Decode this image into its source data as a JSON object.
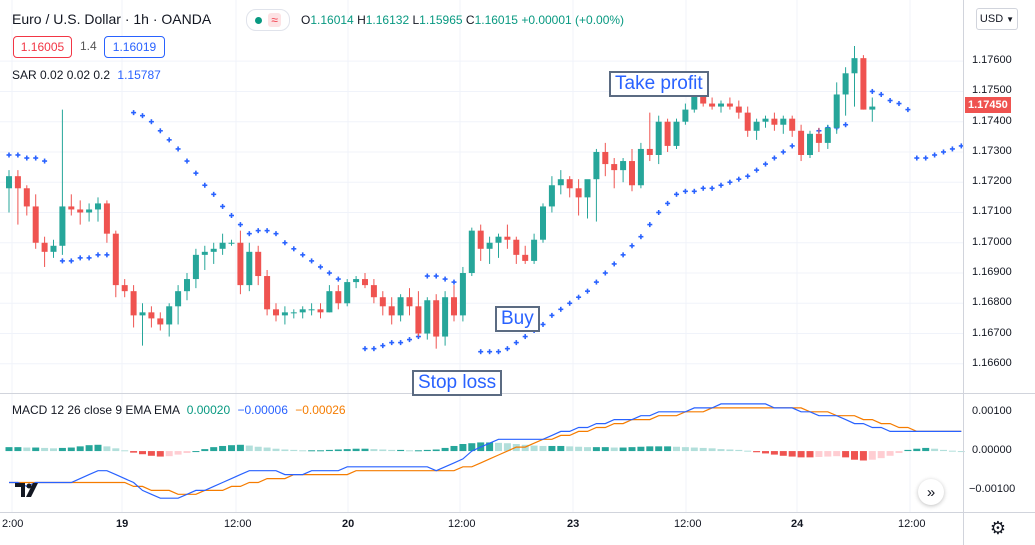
{
  "header": {
    "symbol": "Euro / U.S. Dollar · 1h · OANDA",
    "o_label": "O",
    "o_value": "1.16014",
    "h_label": "H",
    "h_value": "1.16132",
    "l_label": "L",
    "l_value": "1.15965",
    "c_label": "C",
    "c_value": "1.16015",
    "change": "+0.00001 (+0.00%)",
    "sell_price": "1.16005",
    "spread": "1.4",
    "buy_price": "1.16019",
    "currency": "USD",
    "sar_label": "SAR 0.02 0.02 0.2",
    "sar_value": "1.15787",
    "macd_label": "MACD 12 26 close 9 EMA EMA",
    "macd_hist": "0.00020",
    "macd_line": "−0.00006",
    "macd_signal": "−0.00026"
  },
  "annotations": {
    "take_profit": "Take profit",
    "buy": "Buy",
    "stop_loss": "Stop loss"
  },
  "price_axis": {
    "ticks": [
      "1.17600",
      "1.17500",
      "1.17400",
      "1.17300",
      "1.17200",
      "1.17100",
      "1.17000",
      "1.16900",
      "1.16800",
      "1.16700",
      "1.16600"
    ],
    "current": "1.17450"
  },
  "macd_axis": {
    "ticks": [
      "0.00100",
      "0.00000",
      "−0.00100"
    ]
  },
  "time_axis": {
    "ticks": [
      "2:00",
      "19",
      "12:00",
      "20",
      "12:00",
      "23",
      "12:00",
      "24",
      "12:00"
    ]
  },
  "colors": {
    "up": "#26a69a",
    "down": "#ef5350",
    "sar": "#2962ff",
    "macd": "#2962ff",
    "signal": "#f57c00",
    "hist_up": "#26a69a",
    "hist_up_light": "#b2dfdb",
    "hist_down": "#ef5350",
    "hist_down_light": "#ffcdd2"
  },
  "icons": {
    "tv_logo": "tradingview-logo-icon",
    "settings": "gear-icon",
    "scroll": "double-chevron-right-icon"
  },
  "chart_data": {
    "type": "candlestick",
    "title": "Euro / U.S. Dollar · 1h · OANDA",
    "ylim": [
      1.1652,
      1.1767
    ],
    "candles_ohlc": [
      [
        1.1718,
        1.1724,
        1.171,
        1.1722
      ],
      [
        1.1722,
        1.1724,
        1.1706,
        1.1718
      ],
      [
        1.1718,
        1.1719,
        1.1709,
        1.1712
      ],
      [
        1.1712,
        1.1716,
        1.1698,
        1.17
      ],
      [
        1.17,
        1.1702,
        1.1692,
        1.1697
      ],
      [
        1.1697,
        1.1701,
        1.1695,
        1.1699
      ],
      [
        1.1699,
        1.1744,
        1.1696,
        1.1712
      ],
      [
        1.1712,
        1.1716,
        1.1709,
        1.1711
      ],
      [
        1.1711,
        1.1714,
        1.1706,
        1.171
      ],
      [
        1.171,
        1.1713,
        1.1707,
        1.1711
      ],
      [
        1.1711,
        1.1715,
        1.1707,
        1.1713
      ],
      [
        1.1713,
        1.1714,
        1.17,
        1.1703
      ],
      [
        1.1703,
        1.1704,
        1.1682,
        1.1686
      ],
      [
        1.1686,
        1.1688,
        1.1682,
        1.1684
      ],
      [
        1.1684,
        1.1686,
        1.1672,
        1.1676
      ],
      [
        1.1676,
        1.168,
        1.1666,
        1.1677
      ],
      [
        1.1677,
        1.1679,
        1.1672,
        1.1675
      ],
      [
        1.1675,
        1.1677,
        1.1671,
        1.1673
      ],
      [
        1.1673,
        1.168,
        1.1669,
        1.1679
      ],
      [
        1.1679,
        1.1686,
        1.1673,
        1.1684
      ],
      [
        1.1684,
        1.169,
        1.1681,
        1.1688
      ],
      [
        1.1688,
        1.1698,
        1.1685,
        1.1696
      ],
      [
        1.1696,
        1.1699,
        1.1691,
        1.1697
      ],
      [
        1.1697,
        1.17,
        1.1693,
        1.1698
      ],
      [
        1.1698,
        1.1703,
        1.1696,
        1.17
      ],
      [
        1.17,
        1.1701,
        1.1699,
        1.17
      ],
      [
        1.17,
        1.1704,
        1.1683,
        1.1686
      ],
      [
        1.1686,
        1.17,
        1.1684,
        1.1697
      ],
      [
        1.1697,
        1.1699,
        1.1686,
        1.1689
      ],
      [
        1.1689,
        1.1691,
        1.1676,
        1.1678
      ],
      [
        1.1678,
        1.168,
        1.1674,
        1.1676
      ],
      [
        1.1676,
        1.1679,
        1.1673,
        1.1677
      ],
      [
        1.1677,
        1.1678,
        1.1675,
        1.1677
      ],
      [
        1.1677,
        1.1679,
        1.1675,
        1.1678
      ],
      [
        1.1678,
        1.168,
        1.1676,
        1.1678
      ],
      [
        1.1678,
        1.168,
        1.1675,
        1.1677
      ],
      [
        1.1677,
        1.1686,
        1.1677,
        1.1684
      ],
      [
        1.1684,
        1.1686,
        1.1678,
        1.168
      ],
      [
        1.168,
        1.1688,
        1.1679,
        1.1687
      ],
      [
        1.1687,
        1.1689,
        1.1685,
        1.1688
      ],
      [
        1.1688,
        1.169,
        1.1685,
        1.1686
      ],
      [
        1.1686,
        1.1688,
        1.168,
        1.1682
      ],
      [
        1.1682,
        1.1684,
        1.1676,
        1.1679
      ],
      [
        1.1679,
        1.1682,
        1.1673,
        1.1676
      ],
      [
        1.1676,
        1.1683,
        1.1674,
        1.1682
      ],
      [
        1.1682,
        1.1685,
        1.1676,
        1.1679
      ],
      [
        1.1679,
        1.1684,
        1.1669,
        1.167
      ],
      [
        1.167,
        1.1682,
        1.1668,
        1.1681
      ],
      [
        1.1681,
        1.1683,
        1.1665,
        1.1669
      ],
      [
        1.1669,
        1.1684,
        1.1666,
        1.1682
      ],
      [
        1.1682,
        1.1686,
        1.1674,
        1.1676
      ],
      [
        1.1676,
        1.1692,
        1.1674,
        1.169
      ],
      [
        1.169,
        1.1705,
        1.1689,
        1.1704
      ],
      [
        1.1704,
        1.1706,
        1.1694,
        1.1698
      ],
      [
        1.1698,
        1.1702,
        1.1693,
        1.17
      ],
      [
        1.17,
        1.1703,
        1.1695,
        1.1702
      ],
      [
        1.1702,
        1.1706,
        1.1698,
        1.1701
      ],
      [
        1.1701,
        1.1702,
        1.1693,
        1.1696
      ],
      [
        1.1696,
        1.1699,
        1.1693,
        1.1694
      ],
      [
        1.1694,
        1.1703,
        1.1693,
        1.1701
      ],
      [
        1.1701,
        1.1713,
        1.17,
        1.1712
      ],
      [
        1.1712,
        1.1722,
        1.171,
        1.1719
      ],
      [
        1.1719,
        1.1724,
        1.1716,
        1.1721
      ],
      [
        1.1721,
        1.1722,
        1.1715,
        1.1718
      ],
      [
        1.1718,
        1.1721,
        1.1709,
        1.1715
      ],
      [
        1.1715,
        1.1717,
        1.1708,
        1.1721
      ],
      [
        1.1721,
        1.1731,
        1.1707,
        1.173
      ],
      [
        1.173,
        1.1733,
        1.1722,
        1.1726
      ],
      [
        1.1726,
        1.1728,
        1.1718,
        1.1724
      ],
      [
        1.1724,
        1.1728,
        1.172,
        1.1727
      ],
      [
        1.1727,
        1.1731,
        1.1717,
        1.1719
      ],
      [
        1.1719,
        1.1733,
        1.1718,
        1.1731
      ],
      [
        1.1731,
        1.1743,
        1.1727,
        1.1729
      ],
      [
        1.1729,
        1.1742,
        1.1726,
        1.174
      ],
      [
        1.174,
        1.1741,
        1.173,
        1.1732
      ],
      [
        1.1732,
        1.1741,
        1.1731,
        1.174
      ],
      [
        1.174,
        1.1746,
        1.1739,
        1.1744
      ],
      [
        1.1744,
        1.1749,
        1.1743,
        1.1749
      ],
      [
        1.1749,
        1.175,
        1.1745,
        1.1746
      ],
      [
        1.1746,
        1.1748,
        1.1744,
        1.1745
      ],
      [
        1.1745,
        1.1747,
        1.1743,
        1.1746
      ],
      [
        1.1746,
        1.1748,
        1.1744,
        1.1745
      ],
      [
        1.1745,
        1.1747,
        1.1741,
        1.1743
      ],
      [
        1.1743,
        1.1745,
        1.1735,
        1.1737
      ],
      [
        1.1737,
        1.1741,
        1.1734,
        1.174
      ],
      [
        1.174,
        1.1742,
        1.1738,
        1.1741
      ],
      [
        1.1741,
        1.1743,
        1.1737,
        1.1739
      ],
      [
        1.1739,
        1.1742,
        1.1736,
        1.1741
      ],
      [
        1.1741,
        1.1742,
        1.1735,
        1.1737
      ],
      [
        1.1737,
        1.1739,
        1.1727,
        1.1729
      ],
      [
        1.1729,
        1.1737,
        1.1728,
        1.1736
      ],
      [
        1.1736,
        1.1738,
        1.173,
        1.1733
      ],
      [
        1.1733,
        1.1739,
        1.1731,
        1.1738
      ],
      [
        1.1738,
        1.1753,
        1.1736,
        1.1749
      ],
      [
        1.1749,
        1.1758,
        1.1742,
        1.1756
      ],
      [
        1.1756,
        1.1765,
        1.1745,
        1.1761
      ],
      [
        1.1761,
        1.1762,
        1.1744,
        1.1744
      ],
      [
        1.1744,
        1.1748,
        1.174,
        1.1745
      ]
    ],
    "sar": [
      [
        0,
        1.1729
      ],
      [
        1,
        1.1729
      ],
      [
        2,
        1.1728
      ],
      [
        3,
        1.1728
      ],
      [
        4,
        1.1727
      ],
      [
        6,
        1.1694
      ],
      [
        7,
        1.1694
      ],
      [
        8,
        1.1695
      ],
      [
        9,
        1.1695
      ],
      [
        10,
        1.1696
      ],
      [
        11,
        1.1696
      ],
      [
        12,
        1.1697
      ],
      [
        14,
        1.1743
      ],
      [
        15,
        1.1742
      ],
      [
        16,
        1.174
      ],
      [
        17,
        1.1737
      ],
      [
        18,
        1.1734
      ],
      [
        19,
        1.1731
      ],
      [
        20,
        1.1727
      ],
      [
        21,
        1.1723
      ],
      [
        22,
        1.1719
      ],
      [
        23,
        1.1716
      ],
      [
        24,
        1.1712
      ],
      [
        25,
        1.1709
      ],
      [
        26,
        1.1706
      ],
      [
        27,
        1.1703
      ],
      [
        28,
        1.1704
      ],
      [
        29,
        1.1704
      ],
      [
        30,
        1.1703
      ],
      [
        31,
        1.17
      ],
      [
        32,
        1.1698
      ],
      [
        33,
        1.1696
      ],
      [
        34,
        1.1694
      ],
      [
        35,
        1.1692
      ],
      [
        36,
        1.169
      ],
      [
        37,
        1.1688
      ],
      [
        40,
        1.1665
      ],
      [
        41,
        1.1665
      ],
      [
        42,
        1.1666
      ],
      [
        43,
        1.1667
      ],
      [
        44,
        1.1667
      ],
      [
        45,
        1.1668
      ],
      [
        46,
        1.1669
      ],
      [
        47,
        1.1689
      ],
      [
        48,
        1.1689
      ],
      [
        49,
        1.1688
      ],
      [
        50,
        1.1687
      ],
      [
        51,
        1.1685
      ],
      [
        53,
        1.1664
      ],
      [
        54,
        1.1664
      ],
      [
        55,
        1.1664
      ],
      [
        56,
        1.1665
      ],
      [
        57,
        1.1667
      ],
      [
        58,
        1.1669
      ],
      [
        59,
        1.1671
      ],
      [
        60,
        1.1673
      ],
      [
        61,
        1.1676
      ],
      [
        62,
        1.1678
      ],
      [
        63,
        1.168
      ],
      [
        64,
        1.1682
      ],
      [
        65,
        1.1684
      ],
      [
        66,
        1.1687
      ],
      [
        67,
        1.169
      ],
      [
        68,
        1.1693
      ],
      [
        69,
        1.1696
      ],
      [
        70,
        1.1699
      ],
      [
        71,
        1.1702
      ],
      [
        72,
        1.1706
      ],
      [
        73,
        1.171
      ],
      [
        74,
        1.1713
      ],
      [
        75,
        1.1716
      ],
      [
        76,
        1.1717
      ],
      [
        77,
        1.1717
      ],
      [
        78,
        1.1718
      ],
      [
        79,
        1.1718
      ],
      [
        80,
        1.1719
      ],
      [
        81,
        1.172
      ],
      [
        82,
        1.1721
      ],
      [
        83,
        1.1722
      ],
      [
        84,
        1.1724
      ],
      [
        85,
        1.1726
      ],
      [
        86,
        1.1728
      ],
      [
        87,
        1.173
      ],
      [
        88,
        1.1732
      ],
      [
        89,
        1.1734
      ],
      [
        90,
        1.1735
      ],
      [
        91,
        1.1737
      ],
      [
        92,
        1.1738
      ],
      [
        93,
        1.1738
      ],
      [
        94,
        1.1739
      ],
      [
        96,
        1.1751
      ],
      [
        97,
        1.175
      ],
      [
        98,
        1.1749
      ],
      [
        99,
        1.1747
      ],
      [
        100,
        1.1746
      ],
      [
        101,
        1.1744
      ],
      [
        102,
        1.1728
      ],
      [
        103,
        1.1728
      ],
      [
        104,
        1.1729
      ],
      [
        105,
        1.173
      ],
      [
        106,
        1.1731
      ],
      [
        107,
        1.1732
      ]
    ],
    "macd": {
      "ylim": [
        -0.0015,
        0.0013
      ],
      "hist": [
        0.0001,
        0.0001,
        9e-05,
        9e-05,
        8e-05,
        7e-05,
        8e-05,
        9e-05,
        0.00012,
        0.00015,
        0.00016,
        0.00012,
        7e-05,
        2e-05,
        -4e-05,
        -8e-05,
        -0.00012,
        -0.00014,
        -0.00013,
        -9e-05,
        -5e-05,
        0.0,
        5e-05,
        0.0001,
        0.00013,
        0.00015,
        0.00016,
        0.00014,
        0.00011,
        9e-05,
        6e-05,
        4e-05,
        3e-05,
        2e-05,
        2e-05,
        2e-05,
        3e-05,
        4e-05,
        5e-05,
        6e-05,
        6e-05,
        5e-05,
        4e-05,
        3e-05,
        3e-05,
        2e-05,
        2e-05,
        3e-05,
        4e-05,
        8e-05,
        0.00013,
        0.00018,
        0.0002,
        0.00022,
        0.00022,
        0.00021,
        0.0002,
        0.00018,
        0.00016,
        0.00014,
        0.00013,
        0.00013,
        0.00013,
        0.00012,
        0.00011,
        0.0001,
        0.0001,
        0.0001,
        9e-05,
        9e-05,
        0.0001,
        0.00011,
        0.00012,
        0.00012,
        0.00012,
        0.00011,
        0.0001,
        9e-05,
        8e-05,
        7e-05,
        5e-05,
        4e-05,
        3e-05,
        1e-05,
        -3e-05,
        -6e-05,
        -9e-05,
        -0.00012,
        -0.00014,
        -0.00016,
        -0.00016,
        -0.00015,
        -0.00014,
        -0.00013,
        -0.00016,
        -0.00022,
        -0.00024,
        -0.00022,
        -0.00018,
        -0.00012,
        -5e-05,
        3e-05,
        6e-05,
        8e-05,
        6e-05,
        3e-05,
        1e-05,
        0.0
      ],
      "macd_line": [
        -0.0008,
        -0.0008,
        -0.0009,
        -0.0008,
        -0.0008,
        -0.0008,
        -0.0008,
        -0.0008,
        -0.0007,
        -0.0006,
        -0.0005,
        -0.0005,
        -0.0006,
        -0.0007,
        -0.0008,
        -0.001,
        -0.0011,
        -0.0012,
        -0.0012,
        -0.0012,
        -0.0011,
        -0.001,
        -0.001,
        -0.0009,
        -0.0008,
        -0.0007,
        -0.0006,
        -0.0005,
        -0.0005,
        -0.0005,
        -0.0005,
        -0.0006,
        -0.0006,
        -0.0006,
        -0.0005,
        -0.0005,
        -0.0005,
        -0.0005,
        -0.0004,
        -0.0004,
        -0.0004,
        -0.0004,
        -0.0004,
        -0.0004,
        -0.0004,
        -0.0004,
        -0.0004,
        -0.0004,
        -0.0005,
        -0.0004,
        -0.0003,
        -0.0002,
        0.0,
        0.0001,
        0.0002,
        0.0003,
        0.0003,
        0.0003,
        0.0003,
        0.0003,
        0.0003,
        0.0004,
        0.0005,
        0.0005,
        0.0006,
        0.0006,
        0.0007,
        0.0007,
        0.0008,
        0.0008,
        0.0008,
        0.0009,
        0.0009,
        0.001,
        0.001,
        0.001,
        0.001,
        0.0011,
        0.0011,
        0.0011,
        0.0012,
        0.0012,
        0.0012,
        0.0012,
        0.0012,
        0.0012,
        0.0011,
        0.0011,
        0.0011,
        0.001,
        0.001,
        0.0009,
        0.0009,
        0.0009,
        0.0008,
        0.0007,
        0.0007,
        0.0006,
        0.0006,
        0.0005,
        0.0005,
        0.0005,
        0.0005,
        0.0005,
        0.0005,
        0.0005,
        0.0005,
        0.0005
      ],
      "signal_line": [
        -0.0008,
        -0.0008,
        -0.0008,
        -0.0008,
        -0.0008,
        -0.0008,
        -0.0008,
        -0.0008,
        -0.0008,
        -0.0008,
        -0.0008,
        -0.0008,
        -0.0008,
        -0.0008,
        -0.0009,
        -0.0009,
        -0.001,
        -0.001,
        -0.001,
        -0.0011,
        -0.0011,
        -0.0011,
        -0.001,
        -0.001,
        -0.001,
        -0.0009,
        -0.0009,
        -0.0008,
        -0.0008,
        -0.0007,
        -0.0007,
        -0.0007,
        -0.0006,
        -0.0006,
        -0.0006,
        -0.0006,
        -0.0006,
        -0.0006,
        -0.0006,
        -0.0005,
        -0.0005,
        -0.0005,
        -0.0005,
        -0.0005,
        -0.0005,
        -0.0005,
        -0.0005,
        -0.0005,
        -0.0005,
        -0.0005,
        -0.0005,
        -0.0004,
        -0.0004,
        -0.0003,
        -0.0002,
        -0.0001,
        0.0,
        0.0001,
        0.0001,
        0.0002,
        0.0003,
        0.0003,
        0.0004,
        0.0004,
        0.0005,
        0.0005,
        0.0006,
        0.0006,
        0.0007,
        0.0007,
        0.0008,
        0.0008,
        0.0008,
        0.0009,
        0.0009,
        0.0009,
        0.001,
        0.001,
        0.001,
        0.0011,
        0.0011,
        0.0011,
        0.0011,
        0.0011,
        0.0011,
        0.0011,
        0.0011,
        0.0011,
        0.0011,
        0.0011,
        0.001,
        0.001,
        0.001,
        0.0009,
        0.0009,
        0.0009,
        0.0008,
        0.0008,
        0.0007,
        0.0007,
        0.0006,
        0.0006,
        0.0005,
        0.0005,
        0.0005,
        0.0005,
        0.0005,
        0.0005
      ]
    }
  }
}
